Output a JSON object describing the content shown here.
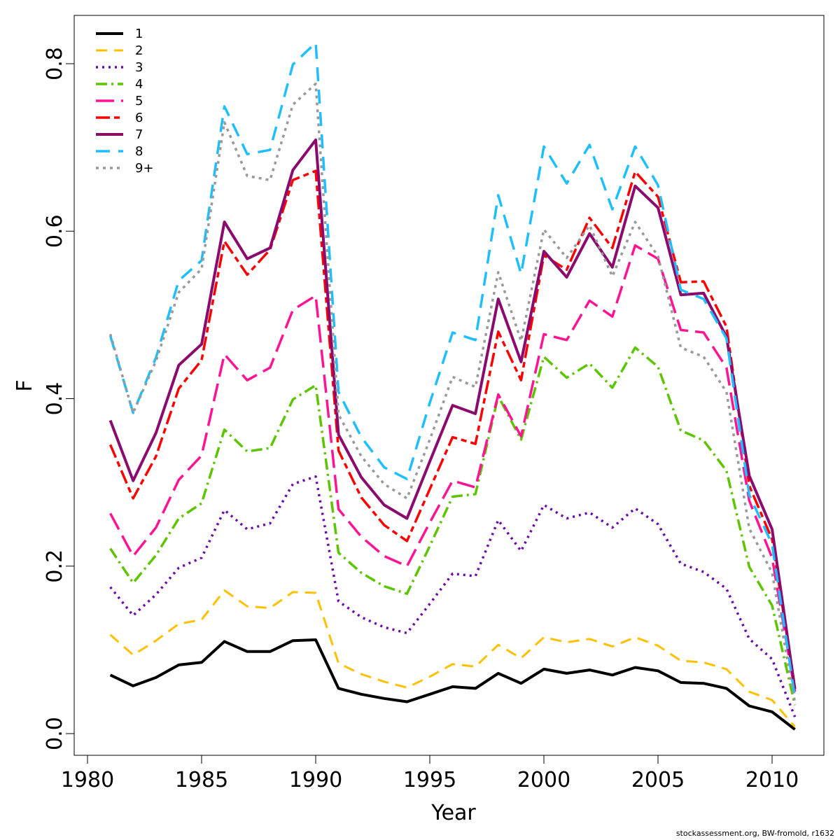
{
  "chart_data": {
    "type": "line",
    "xlabel": "Year",
    "ylabel": "F",
    "xlim": [
      1980,
      2012
    ],
    "ylim": [
      0,
      0.84
    ],
    "x_ticks": [
      1980,
      1985,
      1990,
      1995,
      2000,
      2005,
      2010
    ],
    "y_ticks": [
      0.0,
      0.2,
      0.4,
      0.6,
      0.8
    ],
    "y_tick_labels": [
      "0.0",
      "0.2",
      "0.4",
      "0.6",
      "0.8"
    ],
    "grid": false,
    "legend_position": "top-left",
    "x": [
      1981,
      1982,
      1983,
      1984,
      1985,
      1986,
      1987,
      1988,
      1989,
      1990,
      1991,
      1992,
      1993,
      1994,
      1995,
      1996,
      1997,
      1998,
      1999,
      2000,
      2001,
      2002,
      2003,
      2004,
      2005,
      2006,
      2007,
      2008,
      2009,
      2010,
      2011
    ],
    "series": [
      {
        "name": "1",
        "color": "#000000",
        "dash": "solid",
        "width": 4,
        "values": [
          0.07,
          0.057,
          0.067,
          0.082,
          0.085,
          0.11,
          0.098,
          0.098,
          0.111,
          0.112,
          0.054,
          0.047,
          0.042,
          0.038,
          0.047,
          0.056,
          0.054,
          0.072,
          0.06,
          0.077,
          0.072,
          0.076,
          0.07,
          0.079,
          0.075,
          0.061,
          0.06,
          0.054,
          0.033,
          0.026,
          0.005
        ]
      },
      {
        "name": "2",
        "color": "#ffc000",
        "dash": "16 10",
        "width": 3,
        "values": [
          0.118,
          0.094,
          0.111,
          0.131,
          0.136,
          0.171,
          0.152,
          0.15,
          0.169,
          0.168,
          0.084,
          0.071,
          0.062,
          0.055,
          0.068,
          0.083,
          0.08,
          0.106,
          0.09,
          0.115,
          0.109,
          0.113,
          0.104,
          0.115,
          0.105,
          0.087,
          0.085,
          0.077,
          0.05,
          0.04,
          0.008
        ]
      },
      {
        "name": "3",
        "color": "#6a0aab",
        "dash": "3 6",
        "width": 3.5,
        "values": [
          0.175,
          0.141,
          0.166,
          0.198,
          0.21,
          0.267,
          0.244,
          0.251,
          0.298,
          0.307,
          0.158,
          0.139,
          0.127,
          0.12,
          0.155,
          0.191,
          0.188,
          0.255,
          0.218,
          0.273,
          0.257,
          0.264,
          0.246,
          0.269,
          0.25,
          0.203,
          0.193,
          0.173,
          0.113,
          0.089,
          0.02
        ]
      },
      {
        "name": "4",
        "color": "#5dc500",
        "dash": "16 6 3 6",
        "width": 3.5,
        "values": [
          0.221,
          0.18,
          0.213,
          0.257,
          0.275,
          0.363,
          0.337,
          0.341,
          0.399,
          0.416,
          0.216,
          0.192,
          0.176,
          0.167,
          0.224,
          0.283,
          0.286,
          0.403,
          0.351,
          0.45,
          0.425,
          0.442,
          0.413,
          0.461,
          0.438,
          0.362,
          0.35,
          0.314,
          0.199,
          0.153,
          0.034
        ]
      },
      {
        "name": "5",
        "color": "#ff1493",
        "dash": "26 10",
        "width": 3.5,
        "values": [
          0.263,
          0.212,
          0.246,
          0.303,
          0.332,
          0.453,
          0.422,
          0.437,
          0.506,
          0.523,
          0.268,
          0.235,
          0.212,
          0.2,
          0.252,
          0.302,
          0.294,
          0.405,
          0.355,
          0.477,
          0.47,
          0.517,
          0.498,
          0.583,
          0.567,
          0.482,
          0.479,
          0.437,
          0.278,
          0.21,
          0.05
        ]
      },
      {
        "name": "6",
        "color": "#ff0000",
        "dash": "20 6 8 6",
        "width": 3.5,
        "values": [
          0.345,
          0.281,
          0.331,
          0.412,
          0.446,
          0.588,
          0.548,
          0.578,
          0.661,
          0.672,
          0.338,
          0.282,
          0.249,
          0.23,
          0.292,
          0.354,
          0.346,
          0.48,
          0.422,
          0.571,
          0.554,
          0.616,
          0.58,
          0.671,
          0.641,
          0.539,
          0.54,
          0.486,
          0.296,
          0.232,
          0.055
        ]
      },
      {
        "name": "7",
        "color": "#8b0a6e",
        "dash": "solid",
        "width": 4,
        "values": [
          0.374,
          0.302,
          0.359,
          0.44,
          0.465,
          0.611,
          0.567,
          0.58,
          0.673,
          0.709,
          0.357,
          0.306,
          0.273,
          0.257,
          0.325,
          0.392,
          0.382,
          0.519,
          0.444,
          0.576,
          0.545,
          0.597,
          0.557,
          0.654,
          0.628,
          0.524,
          0.526,
          0.474,
          0.308,
          0.244,
          0.053
        ]
      },
      {
        "name": "8",
        "color": "#1fbfff",
        "dash": "20 12",
        "width": 3.5,
        "values": [
          0.475,
          0.383,
          0.449,
          0.541,
          0.565,
          0.749,
          0.692,
          0.697,
          0.799,
          0.825,
          0.408,
          0.354,
          0.318,
          0.304,
          0.395,
          0.479,
          0.47,
          0.643,
          0.549,
          0.701,
          0.657,
          0.703,
          0.626,
          0.701,
          0.655,
          0.53,
          0.519,
          0.472,
          0.285,
          0.226,
          0.043
        ]
      },
      {
        "name": "9+",
        "color": "#999999",
        "dash": "4 6",
        "width": 3.5,
        "values": [
          0.477,
          0.383,
          0.445,
          0.527,
          0.555,
          0.73,
          0.666,
          0.661,
          0.751,
          0.776,
          0.381,
          0.331,
          0.298,
          0.281,
          0.351,
          0.426,
          0.414,
          0.551,
          0.469,
          0.602,
          0.568,
          0.607,
          0.546,
          0.611,
          0.57,
          0.461,
          0.45,
          0.408,
          0.245,
          0.192,
          0.037
        ]
      }
    ]
  },
  "credit": "stockassessment.org, BW-fromold, r1632"
}
